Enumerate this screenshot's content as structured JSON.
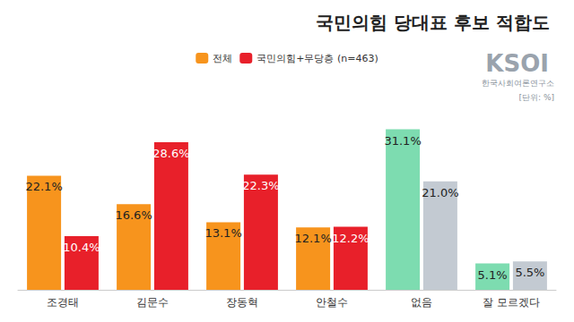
{
  "chart_data": {
    "type": "bar",
    "title": "국민의힘 당대표 후보 적합도",
    "annotations": [
      "KSOI",
      "한국사회여론연구소",
      "[단위: %]"
    ],
    "categories": [
      "조경태",
      "김문수",
      "장동혁",
      "안철수",
      "없음",
      "잘 모르겠다"
    ],
    "series": [
      {
        "name": "전체",
        "color": "#f7941d",
        "colors": [
          "#f7941d",
          "#f7941d",
          "#f7941d",
          "#f7941d",
          "#7ddcb0",
          "#7ddcb0"
        ],
        "values": [
          22.1,
          16.6,
          13.1,
          12.1,
          31.1,
          5.1
        ],
        "value_labels": [
          "22.1%",
          "16.6%",
          "13.1%",
          "12.1%",
          "31.1%",
          "5.1%"
        ]
      },
      {
        "name": "국민의힘+무당층 (n=463)",
        "color": "#e8202a",
        "colors": [
          "#e8202a",
          "#e8202a",
          "#e8202a",
          "#e8202a",
          "#c3cad2",
          "#c3cad2"
        ],
        "values": [
          10.4,
          28.6,
          22.3,
          12.2,
          21.0,
          5.5
        ],
        "value_labels": [
          "10.4%",
          "28.6%",
          "22.3%",
          "12.2%",
          "21.0%",
          "5.5%"
        ]
      }
    ],
    "ylim": [
      0,
      35
    ],
    "legend": "top",
    "data_labels": true,
    "tick_labels": "x",
    "grid": false
  }
}
